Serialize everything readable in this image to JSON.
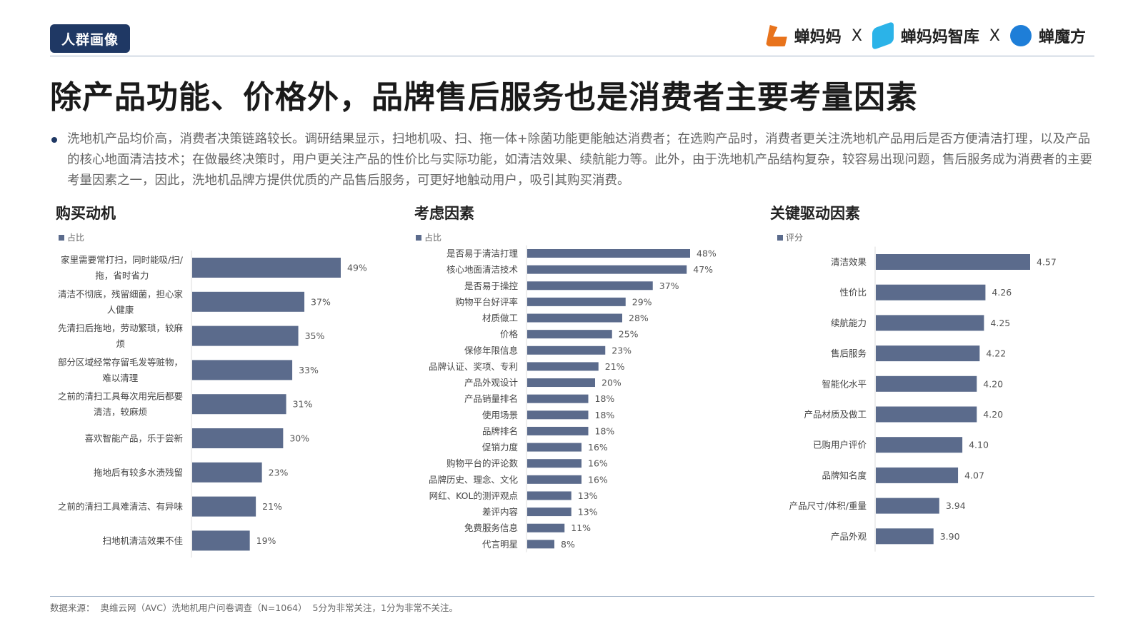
{
  "header": {
    "tag": "人群画像",
    "logos": [
      "蝉妈妈",
      "蝉妈妈智库",
      "蝉魔方"
    ],
    "separator": "X",
    "title": "除产品功能、价格外，品牌售后服务也是消费者主要考量因素"
  },
  "summary": "洗地机产品均价高，消费者决策链路较长。调研结果显示，扫地机吸、扫、拖一体+除菌功能更能触达消费者；在选购产品时，消费者更关注洗地机产品用后是否方便清洁打理，以及产品的核心地面清洁技术；在做最终决策时，用户更关注产品的性价比与实际功能，如清洁效果、续航能力等。此外，由于洗地机产品结构复杂，较容易出现问题，售后服务成为消费者的主要考量因素之一，因此，洗地机品牌方提供优质的产品售后服务，可更好地触动用户，吸引其购买消费。",
  "footer": "数据来源：  奥维云网（AVC）洗地机用户问卷调查（N=1064）  5分为非常关注，1分为非常不关注。",
  "colors": {
    "bar": "#5b6b8c",
    "navy": "#1f3864"
  },
  "chart_data": [
    {
      "type": "bar",
      "orientation": "horizontal",
      "title": "购买动机",
      "legend": "占比",
      "unit": "%",
      "xlim": [
        0,
        49
      ],
      "categories": [
        [
          "家里需要常打扫，同时能吸/扫/",
          "拖，省时省力"
        ],
        [
          "清洁不彻底，残留细菌，担心家",
          "人健康"
        ],
        [
          "先清扫后拖地，劳动繁琐，较麻",
          "烦"
        ],
        [
          "部分区域经常存留毛发等赃物，",
          "难以清理"
        ],
        [
          "之前的清扫工具每次用完后都要",
          "清洁，较麻烦"
        ],
        [
          "喜欢智能产品，乐于尝新"
        ],
        [
          "拖地后有较多水渍残留"
        ],
        [
          "之前的清扫工具难清洁、有异味"
        ],
        [
          "扫地机清洁效果不佳"
        ]
      ],
      "values": [
        49,
        37,
        35,
        33,
        31,
        30,
        23,
        21,
        19
      ]
    },
    {
      "type": "bar",
      "orientation": "horizontal",
      "title": "考虑因素",
      "legend": "占比",
      "unit": "%",
      "xlim": [
        0,
        48
      ],
      "categories": [
        [
          "是否易于清洁打理"
        ],
        [
          "核心地面清洁技术"
        ],
        [
          "是否易于操控"
        ],
        [
          "购物平台好评率"
        ],
        [
          "材质做工"
        ],
        [
          "价格"
        ],
        [
          "保修年限信息"
        ],
        [
          "品牌认证、奖项、专利"
        ],
        [
          "产品外观设计"
        ],
        [
          "产品销量排名"
        ],
        [
          "使用场景"
        ],
        [
          "品牌排名"
        ],
        [
          "促销力度"
        ],
        [
          "购物平台的评论数"
        ],
        [
          "品牌历史、理念、文化"
        ],
        [
          "网红、KOL的测评观点"
        ],
        [
          "差评内容"
        ],
        [
          "免费服务信息"
        ],
        [
          "代言明星"
        ]
      ],
      "values": [
        48,
        47,
        37,
        29,
        28,
        25,
        23,
        21,
        20,
        18,
        18,
        18,
        16,
        16,
        16,
        13,
        13,
        11,
        8
      ]
    },
    {
      "type": "bar",
      "orientation": "horizontal",
      "title": "关键驱动因素",
      "legend": "评分",
      "unit": "",
      "xlim": [
        3.5,
        4.57
      ],
      "categories": [
        [
          "清洁效果"
        ],
        [
          "性价比"
        ],
        [
          "续航能力"
        ],
        [
          "售后服务"
        ],
        [
          "智能化水平"
        ],
        [
          "产品材质及做工"
        ],
        [
          "已购用户评价"
        ],
        [
          "品牌知名度"
        ],
        [
          "产品尺寸/体积/重量"
        ],
        [
          "产品外观"
        ]
      ],
      "values": [
        4.57,
        4.26,
        4.25,
        4.22,
        4.2,
        4.2,
        4.1,
        4.07,
        3.94,
        3.9
      ],
      "labels": [
        "4.57",
        "4.26",
        "4.25",
        "4.22",
        "4.20",
        "4.20",
        "4.10",
        "4.07",
        "3.94",
        "3.90"
      ]
    }
  ]
}
